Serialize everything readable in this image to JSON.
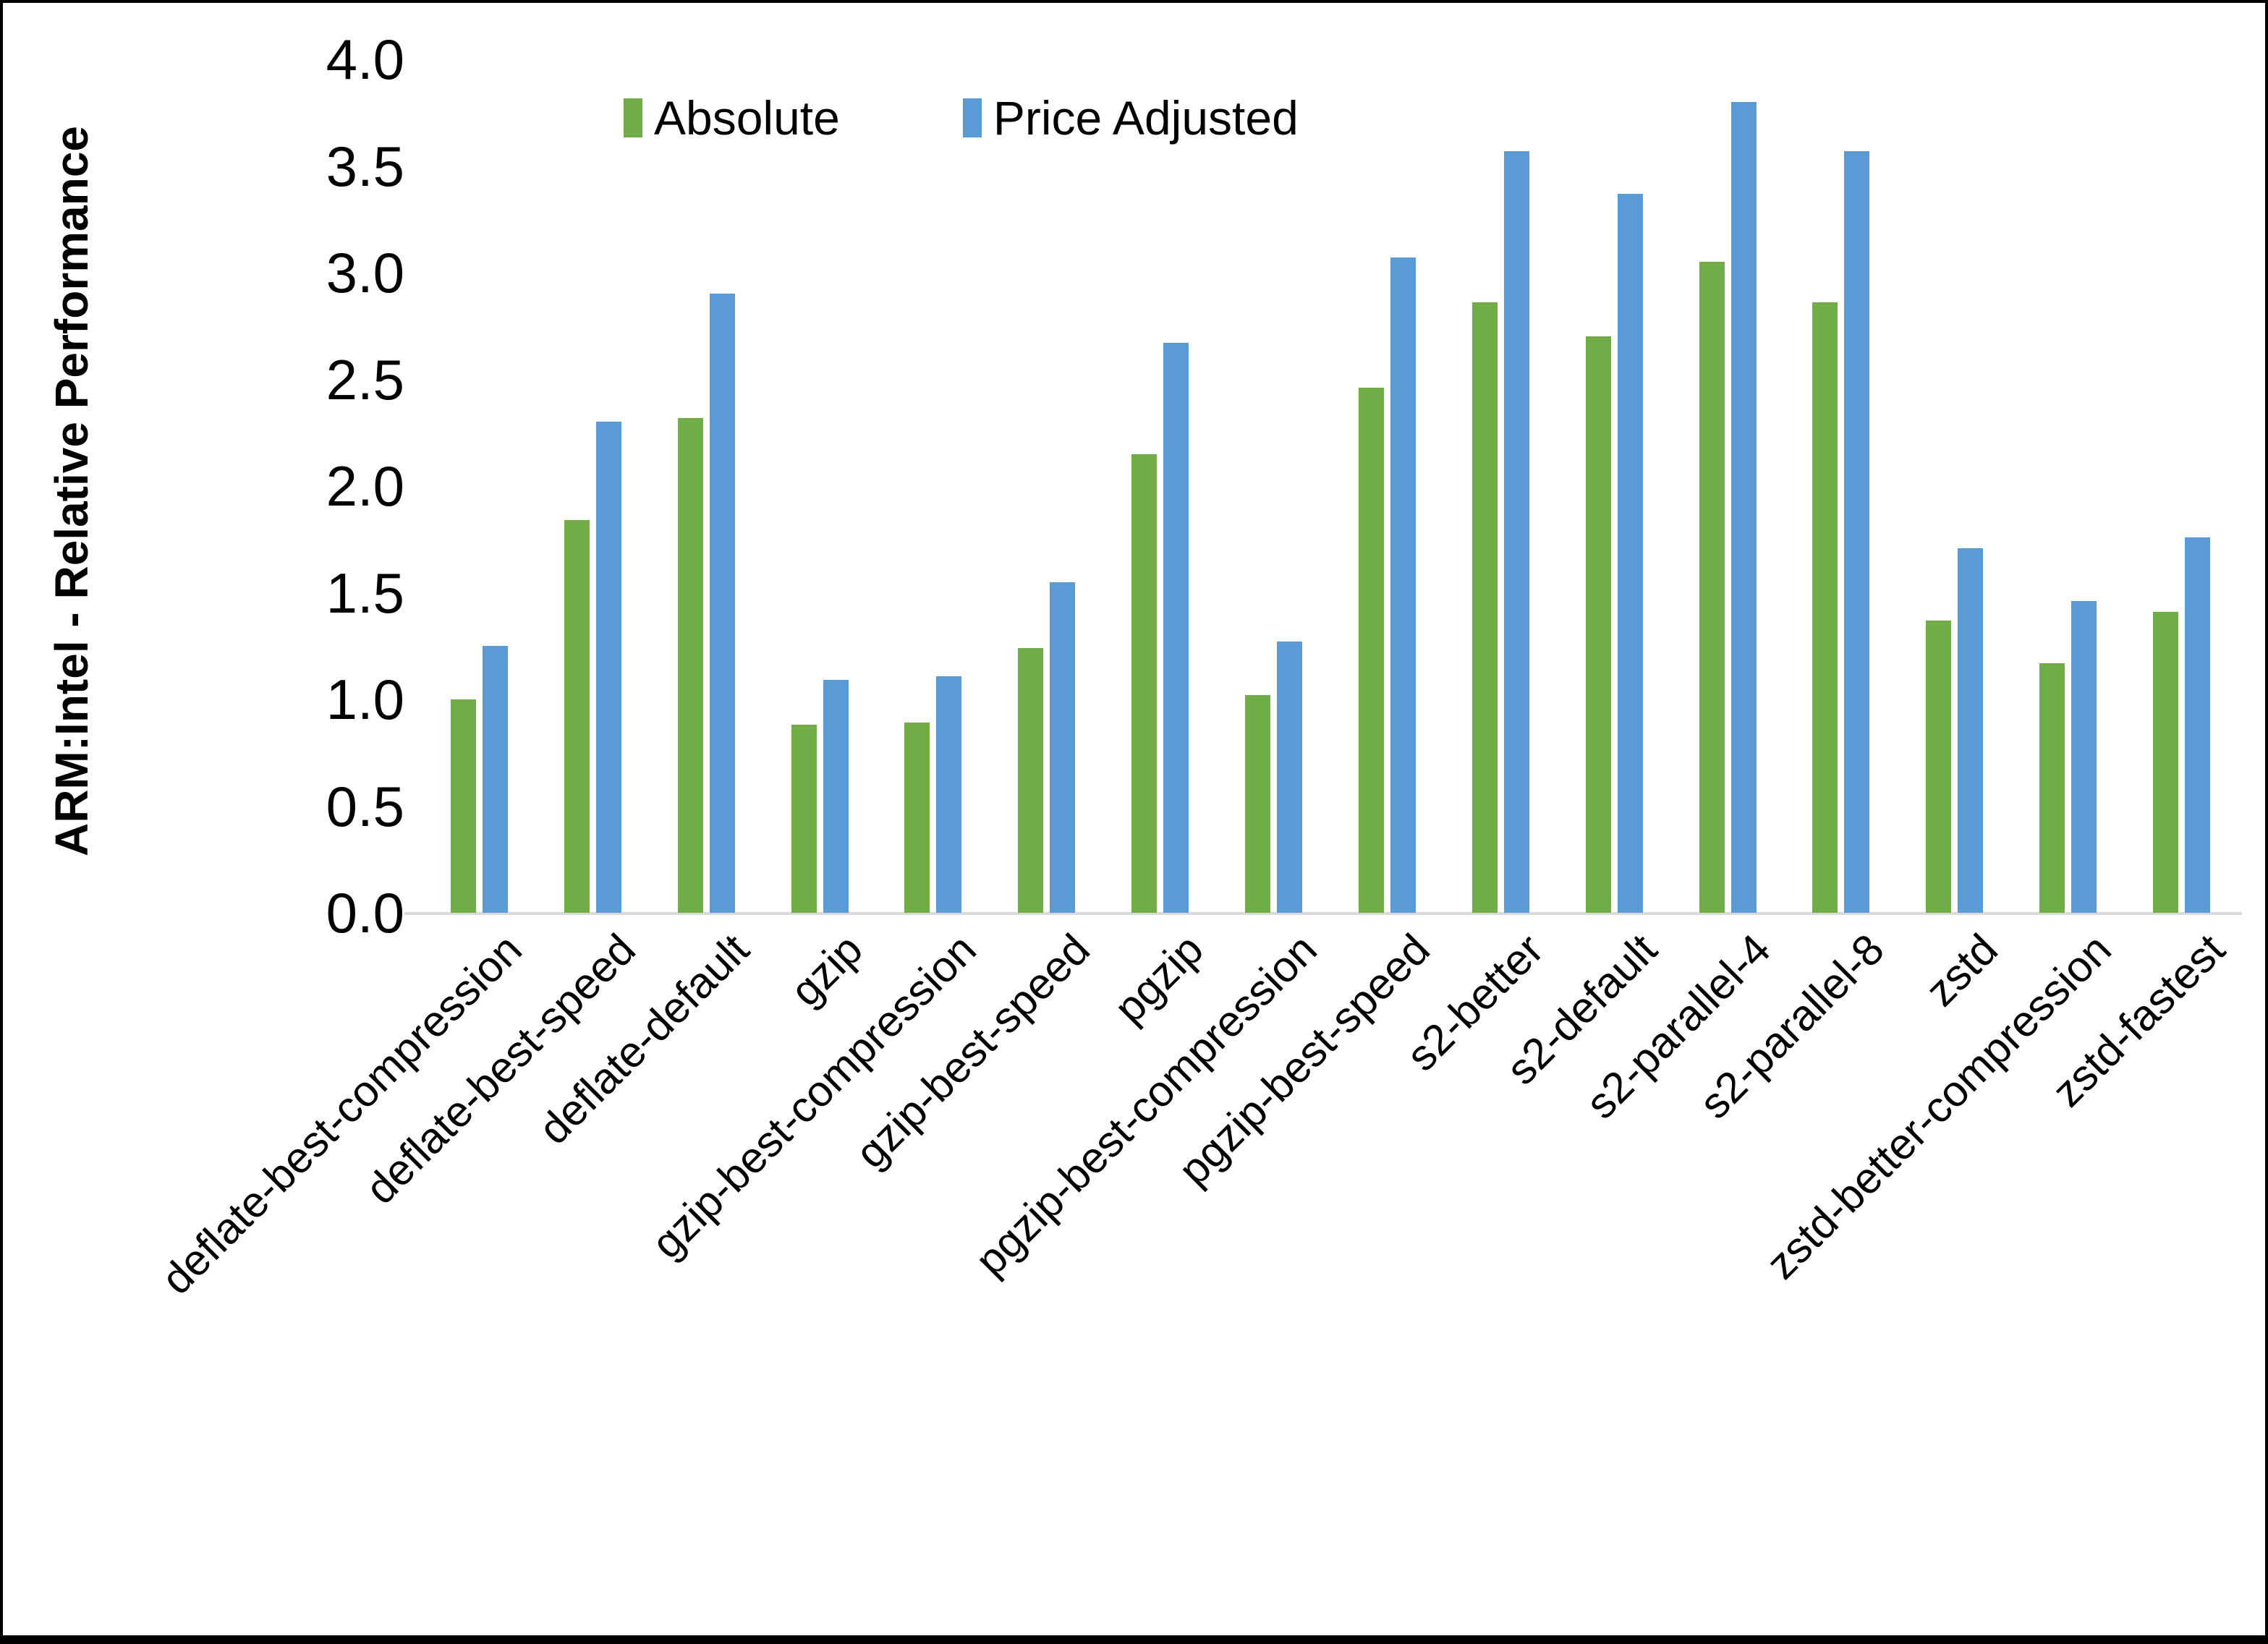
{
  "chart_data": {
    "type": "bar",
    "title": "",
    "xlabel": "",
    "ylabel": "ARM:Intel - Relative Performance",
    "ylim": [
      0.0,
      4.0
    ],
    "ytick_labels": [
      "0.0",
      "0.5",
      "1.0",
      "1.5",
      "2.0",
      "2.5",
      "3.0",
      "3.5",
      "4.0"
    ],
    "grid": false,
    "legend_position": "top-center-inside",
    "categories": [
      "deflate-best-compression",
      "deflate-best-speed",
      "deflate-default",
      "gzip",
      "gzip-best-compression",
      "gzip-best-speed",
      "pgzip",
      "pgzip-best-compression",
      "pgzip-best-speed",
      "s2-better",
      "s2-default",
      "s2-parallel-4",
      "s2-parallel-8",
      "zstd",
      "zstd-better-compression",
      "zstd-fastest"
    ],
    "series": [
      {
        "name": "Absolute",
        "color": "#70AD47",
        "values": [
          1.0,
          1.84,
          2.32,
          0.88,
          0.89,
          1.24,
          2.15,
          1.02,
          2.46,
          2.86,
          2.7,
          3.05,
          2.86,
          1.37,
          1.17,
          1.41
        ]
      },
      {
        "name": "Price Adjusted",
        "color": "#5B9BD5",
        "values": [
          1.25,
          2.3,
          2.9,
          1.09,
          1.11,
          1.55,
          2.67,
          1.27,
          3.07,
          3.57,
          3.37,
          3.8,
          3.57,
          1.71,
          1.46,
          1.76
        ]
      }
    ]
  },
  "colors": {
    "background": "#FFFFFF",
    "frame": "#000000",
    "axis_line": "#D9D9D9",
    "text": "#000000"
  }
}
